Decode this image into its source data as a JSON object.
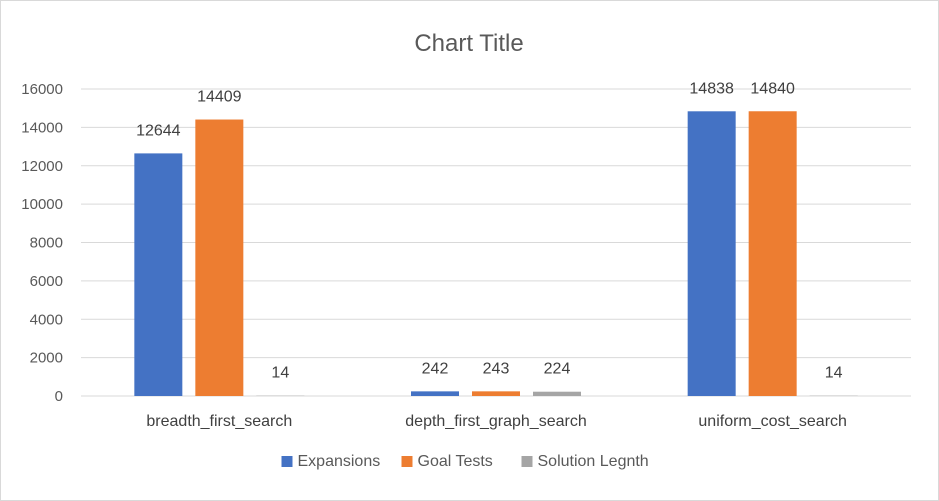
{
  "chart_data": {
    "type": "bar",
    "title": "Chart Title",
    "xlabel": "",
    "ylabel": "",
    "categories": [
      "breadth_first_search",
      "depth_first_graph_search",
      "uniform_cost_search"
    ],
    "series": [
      {
        "name": "Expansions",
        "color": "#4472c4",
        "values": [
          12644,
          242,
          14838
        ]
      },
      {
        "name": "Goal Tests",
        "color": "#ed7d31",
        "values": [
          14409,
          243,
          14840
        ]
      },
      {
        "name": "Solution Legnth",
        "color": "#a5a5a5",
        "values": [
          14,
          224,
          14
        ]
      }
    ],
    "ylim": [
      0,
      16000
    ],
    "yticks": [
      "0",
      "2000",
      "4000",
      "6000",
      "8000",
      "10000",
      "12000",
      "14000",
      "16000"
    ],
    "grid": true,
    "legend_position": "bottom",
    "data_labels": true
  }
}
